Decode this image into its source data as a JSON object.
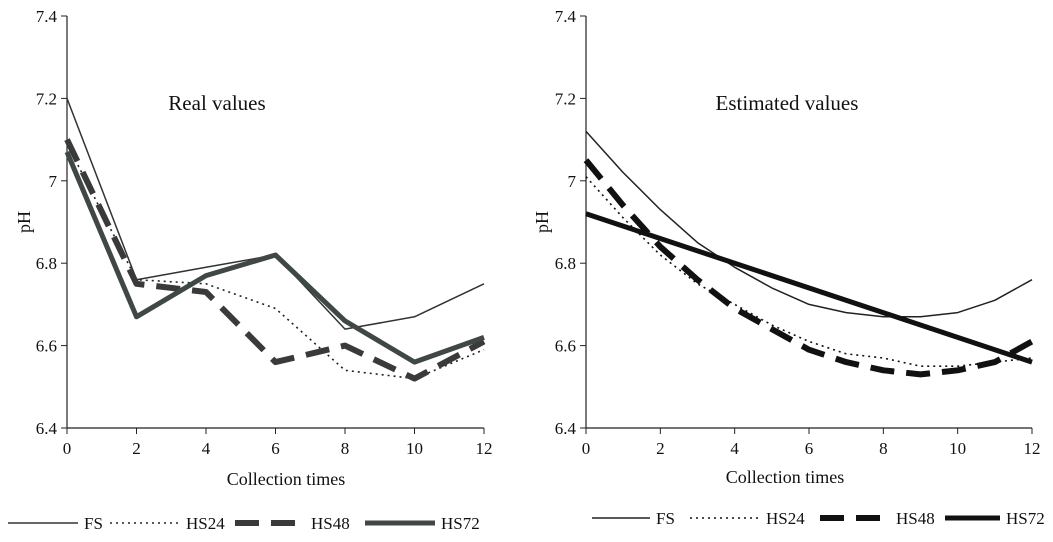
{
  "chart_data": [
    {
      "type": "line",
      "annotation": "Real values",
      "xlabel": "Collection times",
      "ylabel": "pH",
      "xlim": [
        0,
        12
      ],
      "ylim": [
        6.4,
        7.4
      ],
      "x_ticks": [
        0,
        2,
        4,
        6,
        8,
        10,
        12
      ],
      "y_ticks": [
        6.4,
        6.6,
        6.8,
        7,
        7.2,
        7.4
      ],
      "y_tick_labels": [
        "6.4",
        "6.6",
        "6.8",
        "7",
        "7.2",
        "7.4"
      ],
      "grid": false,
      "legend_position": "bottom",
      "series": [
        {
          "name": "FS",
          "style": "thin-solid",
          "color": "#333333",
          "x": [
            0,
            2,
            4,
            6,
            8,
            10,
            12
          ],
          "values": [
            7.2,
            6.76,
            6.79,
            6.82,
            6.64,
            6.67,
            6.75
          ]
        },
        {
          "name": "HS24",
          "style": "dotted",
          "color": "#222222",
          "x": [
            0,
            2,
            4,
            6,
            8,
            10,
            12
          ],
          "values": [
            7.09,
            6.76,
            6.75,
            6.69,
            6.54,
            6.52,
            6.59
          ]
        },
        {
          "name": "HS48",
          "style": "thick-dashed",
          "color": "#3a3a3a",
          "x": [
            0,
            2,
            4,
            6,
            8,
            10,
            12
          ],
          "values": [
            7.1,
            6.75,
            6.73,
            6.56,
            6.6,
            6.52,
            6.61
          ]
        },
        {
          "name": "HS72",
          "style": "thick-solid",
          "color": "#3f4747",
          "x": [
            0,
            2,
            4,
            6,
            8,
            10,
            12
          ],
          "values": [
            7.07,
            6.67,
            6.77,
            6.82,
            6.66,
            6.56,
            6.62
          ]
        }
      ]
    },
    {
      "type": "line",
      "annotation": "Estimated values",
      "xlabel": "Collection times",
      "ylabel": "pH",
      "xlim": [
        0,
        12
      ],
      "ylim": [
        6.4,
        7.4
      ],
      "x_ticks": [
        0,
        2,
        4,
        6,
        8,
        10,
        12
      ],
      "y_ticks": [
        6.4,
        6.6,
        6.8,
        7,
        7.2,
        7.4
      ],
      "y_tick_labels": [
        "6.4",
        "6.6",
        "6.8",
        "7",
        "7.2",
        "7.4"
      ],
      "grid": false,
      "legend_position": "bottom",
      "series": [
        {
          "name": "FS",
          "style": "thin-solid",
          "color": "#222222",
          "x": [
            0,
            1,
            2,
            3,
            4,
            5,
            6,
            7,
            8,
            9,
            10,
            11,
            12
          ],
          "values": [
            7.12,
            7.02,
            6.93,
            6.85,
            6.79,
            6.74,
            6.7,
            6.68,
            6.67,
            6.67,
            6.68,
            6.71,
            6.76
          ]
        },
        {
          "name": "HS24",
          "style": "dotted",
          "color": "#111111",
          "x": [
            0,
            1,
            2,
            3,
            4,
            5,
            6,
            7,
            8,
            9,
            10,
            11,
            12
          ],
          "values": [
            7.01,
            6.91,
            6.82,
            6.75,
            6.7,
            6.65,
            6.61,
            6.58,
            6.57,
            6.55,
            6.55,
            6.56,
            6.57
          ]
        },
        {
          "name": "HS48",
          "style": "thick-dashed",
          "color": "#111111",
          "x": [
            0,
            1,
            2,
            3,
            4,
            5,
            6,
            7,
            8,
            9,
            10,
            11,
            12
          ],
          "values": [
            7.05,
            6.94,
            6.84,
            6.76,
            6.69,
            6.64,
            6.59,
            6.56,
            6.54,
            6.53,
            6.54,
            6.56,
            6.61
          ]
        },
        {
          "name": "HS72",
          "style": "thick-solid",
          "color": "#111111",
          "x": [
            0,
            12
          ],
          "values": [
            6.92,
            6.56
          ]
        }
      ]
    }
  ]
}
